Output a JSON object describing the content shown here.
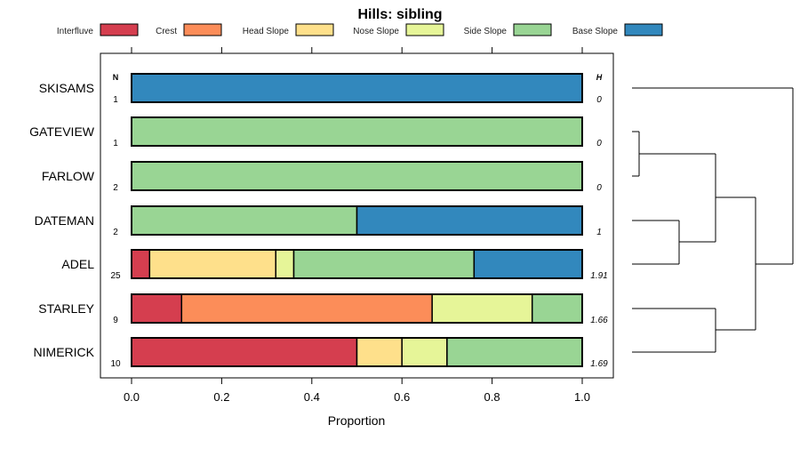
{
  "chart_data": {
    "type": "bar",
    "orientation": "horizontal-stacked",
    "title": "Hills: sibling",
    "xlabel": "Proportion",
    "xlim": [
      0,
      1
    ],
    "xticks": [
      "0.0",
      "0.2",
      "0.4",
      "0.6",
      "0.8",
      "1.0"
    ],
    "n_header": "N",
    "h_header": "H",
    "legend_position": "top",
    "legend": [
      {
        "name": "Interfluve",
        "color": "#D53E4F"
      },
      {
        "name": "Crest",
        "color": "#FC8D59"
      },
      {
        "name": "Head Slope",
        "color": "#FEE08B"
      },
      {
        "name": "Nose Slope",
        "color": "#E6F598"
      },
      {
        "name": "Side Slope",
        "color": "#99D594"
      },
      {
        "name": "Base Slope",
        "color": "#3288BD"
      }
    ],
    "rows": [
      {
        "label": "SKISAMS",
        "n": "1",
        "h": "0",
        "values": [
          0,
          0,
          0,
          0,
          0,
          1
        ]
      },
      {
        "label": "GATEVIEW",
        "n": "1",
        "h": "0",
        "values": [
          0,
          0,
          0,
          0,
          1,
          0
        ]
      },
      {
        "label": "FARLOW",
        "n": "2",
        "h": "0",
        "values": [
          0,
          0,
          0,
          0,
          1,
          0
        ]
      },
      {
        "label": "DATEMAN",
        "n": "2",
        "h": "1",
        "values": [
          0,
          0,
          0,
          0,
          0.5,
          0.5
        ]
      },
      {
        "label": "ADEL",
        "n": "25",
        "h": "1.91",
        "values": [
          0.04,
          0,
          0.28,
          0.04,
          0.4,
          0.24
        ]
      },
      {
        "label": "STARLEY",
        "n": "9",
        "h": "1.66",
        "values": [
          0.111,
          0.556,
          0,
          0.222,
          0.111,
          0
        ]
      },
      {
        "label": "NIMERICK",
        "n": "10",
        "h": "1.69",
        "values": [
          0.5,
          0,
          0.1,
          0.1,
          0.3,
          0
        ]
      }
    ],
    "dendrogram": "((SKISAMS),(((GATEVIEW,FARLOW),(DATEMAN,ADEL)),(STARLEY,NIMERICK)))"
  }
}
